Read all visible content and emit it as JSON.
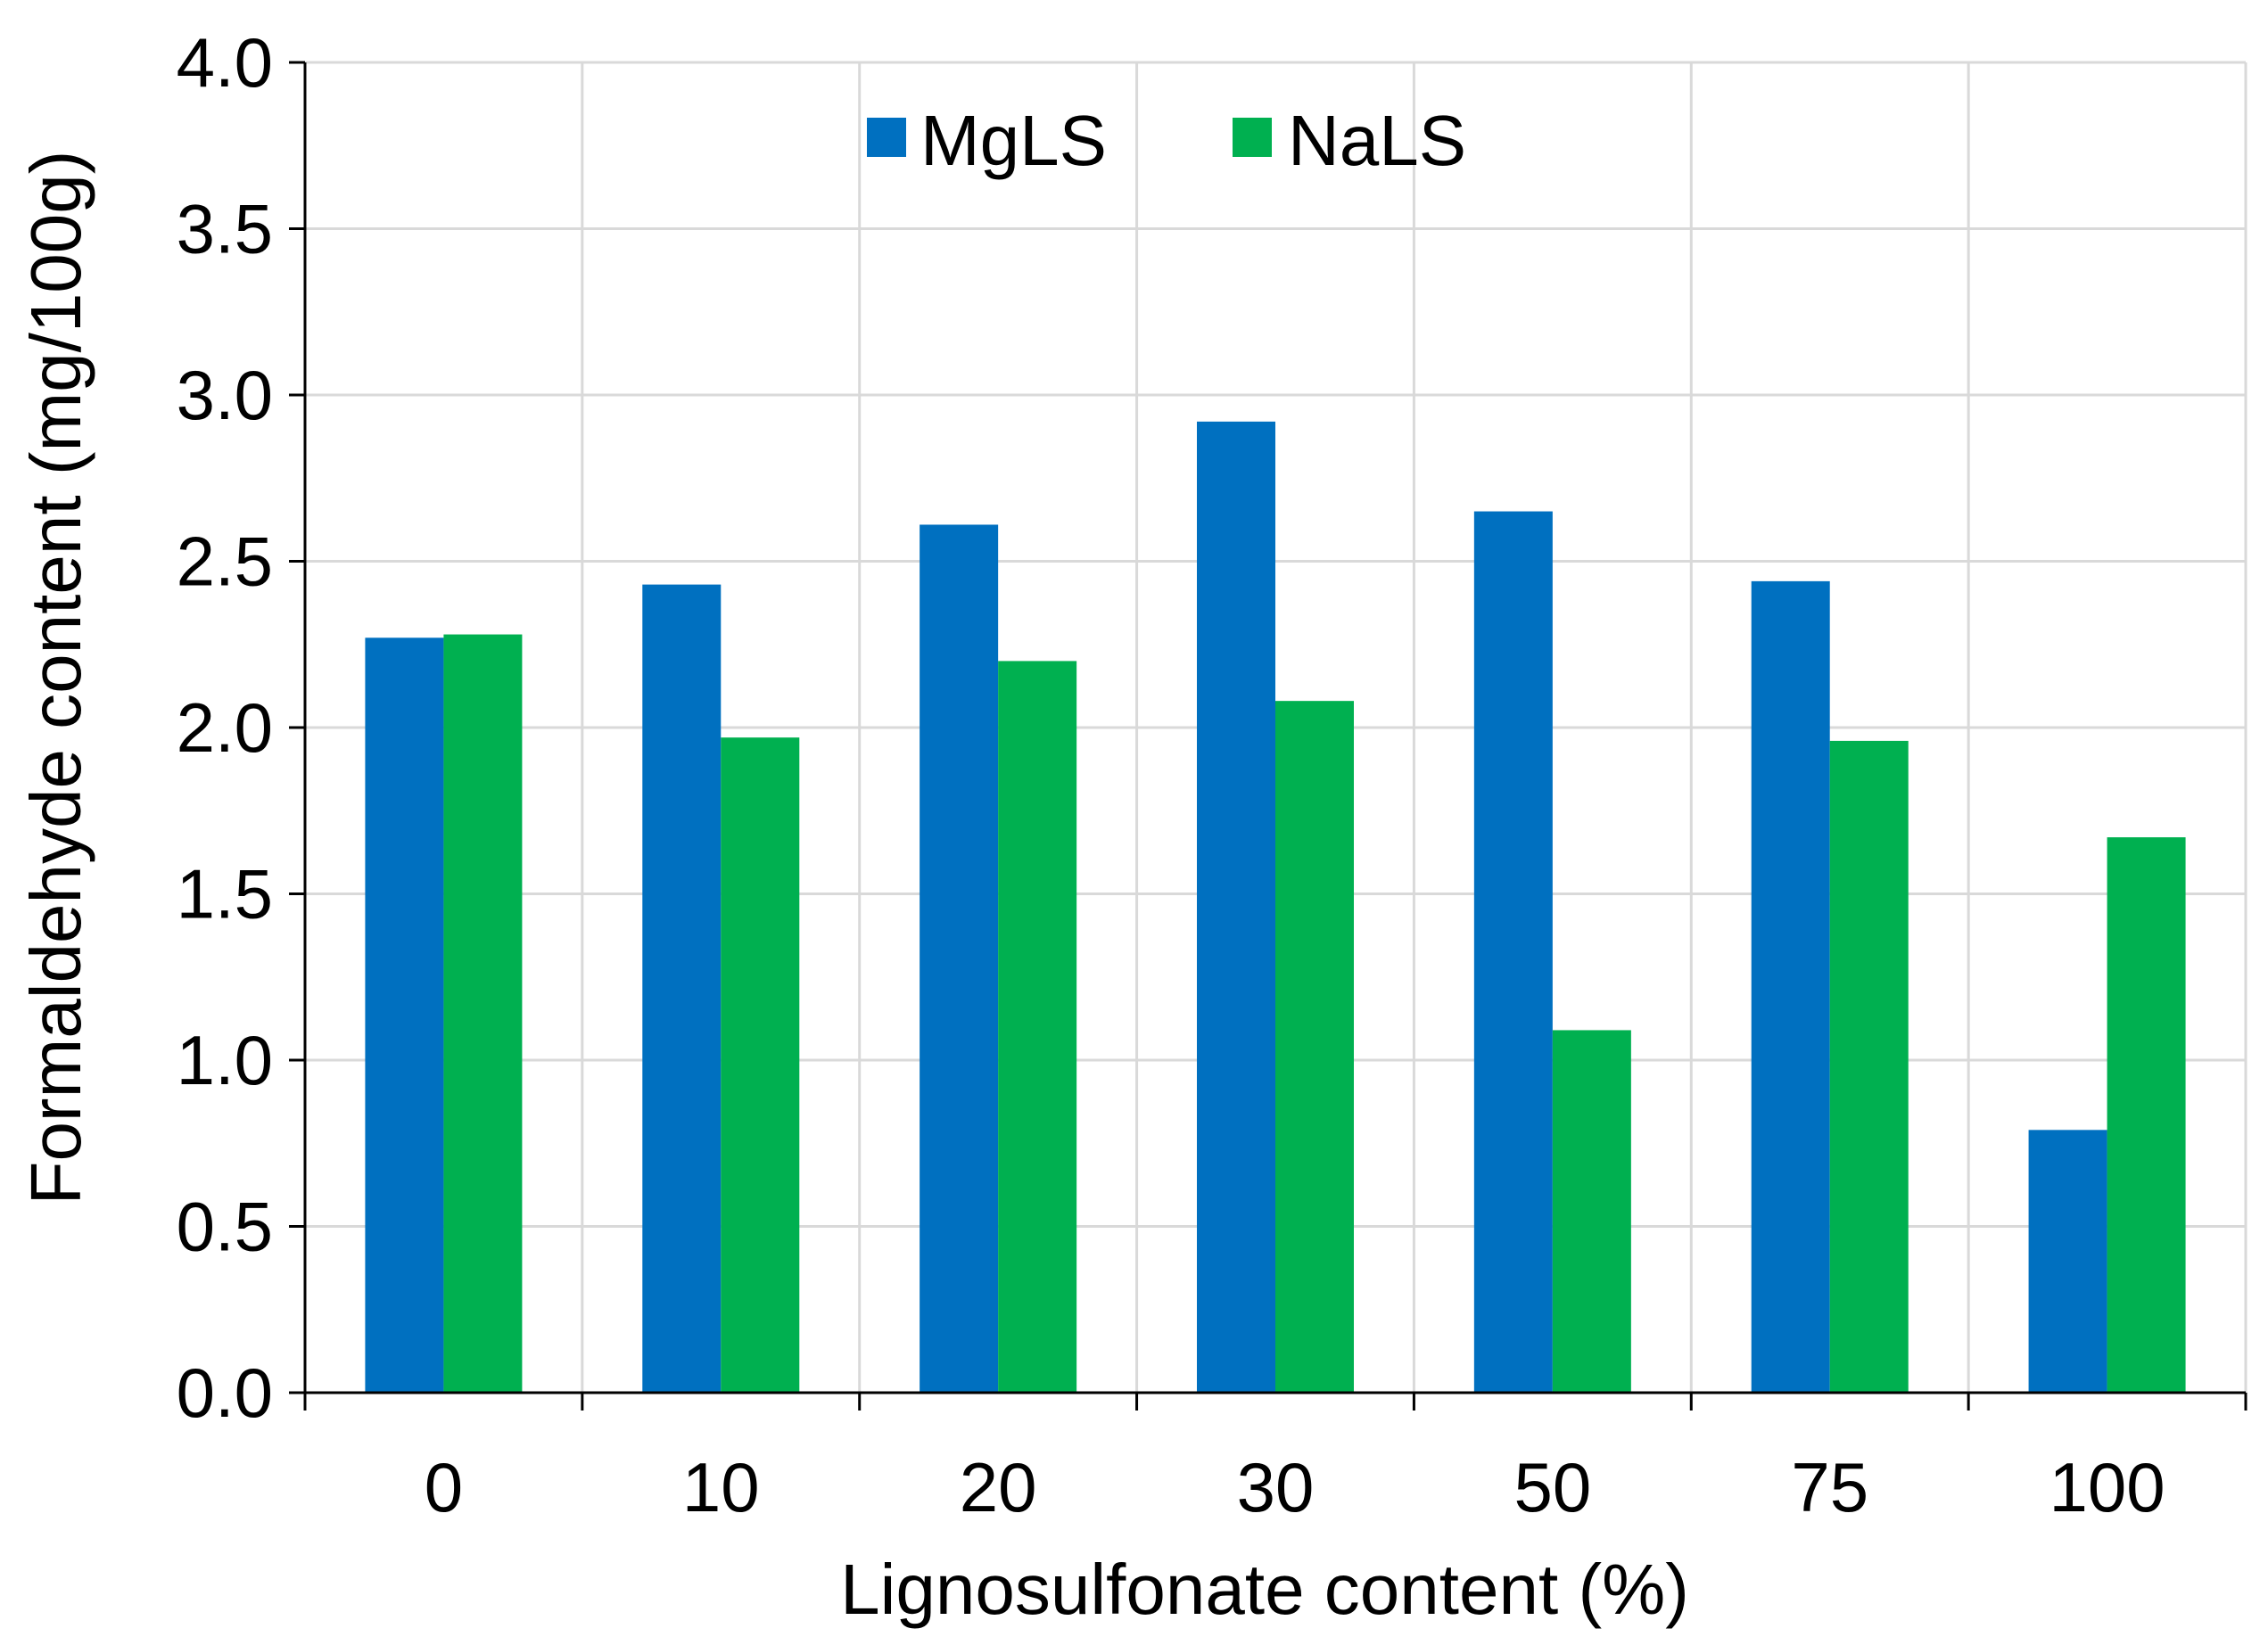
{
  "chart_data": {
    "type": "bar",
    "title": "",
    "xlabel": "Lignosulfonate content  (%)",
    "ylabel": "Formaldehyde content (mg/100g)",
    "categories": [
      "0",
      "10",
      "20",
      "30",
      "50",
      "75",
      "100"
    ],
    "ylim": [
      0,
      4.0
    ],
    "yticks": [
      "0.0",
      "0.5",
      "1.0",
      "1.5",
      "2.0",
      "2.5",
      "3.0",
      "3.5",
      "4.0"
    ],
    "grid": true,
    "legend_position": "top-center",
    "series": [
      {
        "name": "MgLS",
        "color": "#0070C0",
        "values": [
          2.27,
          2.43,
          2.61,
          2.92,
          2.65,
          2.44,
          0.79
        ]
      },
      {
        "name": "NaLS",
        "color": "#00B050",
        "values": [
          2.28,
          1.97,
          2.2,
          2.08,
          1.09,
          1.96,
          1.67
        ]
      }
    ]
  }
}
